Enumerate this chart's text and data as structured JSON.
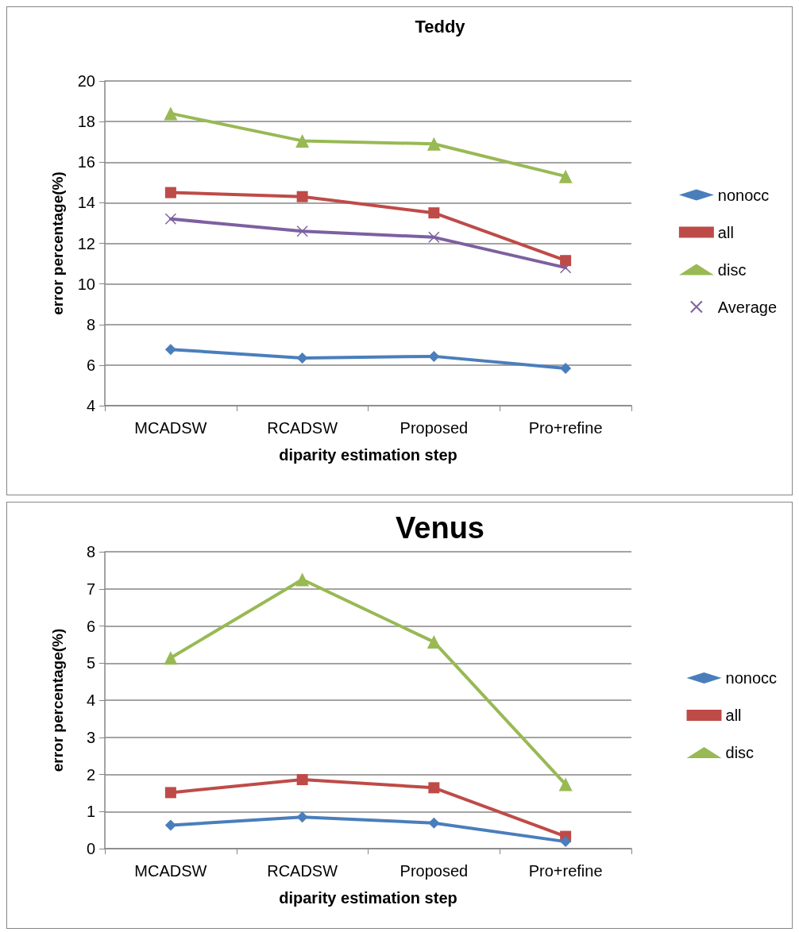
{
  "chart_data": [
    {
      "type": "line",
      "title": "Teddy",
      "xlabel": "diparity estimation step",
      "ylabel": "error percentage(%)",
      "categories": [
        "MCADSW",
        "RCADSW",
        "Proposed",
        "Pro+refine"
      ],
      "ylim": [
        4,
        20
      ],
      "yticks": [
        4,
        6,
        8,
        10,
        12,
        14,
        16,
        18,
        20
      ],
      "grid": "y",
      "legend": "right",
      "line_style": "solid",
      "series": [
        {
          "name": "nonocc",
          "color": "#4a7ebb",
          "marker": "diamond",
          "values": [
            6.77,
            6.35,
            6.43,
            5.84
          ]
        },
        {
          "name": "all",
          "color": "#be4b48",
          "marker": "square",
          "values": [
            14.5,
            14.3,
            13.5,
            11.15
          ]
        },
        {
          "name": "disc",
          "color": "#98b954",
          "marker": "triangle",
          "values": [
            18.4,
            17.05,
            16.9,
            15.3
          ]
        },
        {
          "name": "Average",
          "color": "#7d60a0",
          "marker": "cross",
          "values": [
            13.2,
            12.6,
            12.3,
            10.8
          ]
        }
      ]
    },
    {
      "type": "line",
      "title": "Venus",
      "xlabel": "diparity estimation step",
      "ylabel": "error percentage(%)",
      "categories": [
        "MCADSW",
        "RCADSW",
        "Proposed",
        "Pro+refine"
      ],
      "ylim": [
        0,
        8
      ],
      "yticks": [
        0,
        1,
        2,
        3,
        4,
        5,
        6,
        7,
        8
      ],
      "grid": "y",
      "legend": "right",
      "line_style": "solid",
      "series": [
        {
          "name": "nonocc",
          "color": "#4a7ebb",
          "marker": "diamond",
          "values": [
            0.63,
            0.85,
            0.69,
            0.19
          ]
        },
        {
          "name": "all",
          "color": "#be4b48",
          "marker": "square",
          "values": [
            1.51,
            1.86,
            1.64,
            0.33
          ]
        },
        {
          "name": "disc",
          "color": "#98b954",
          "marker": "triangle",
          "values": [
            5.14,
            7.25,
            5.57,
            1.73
          ]
        }
      ]
    }
  ]
}
